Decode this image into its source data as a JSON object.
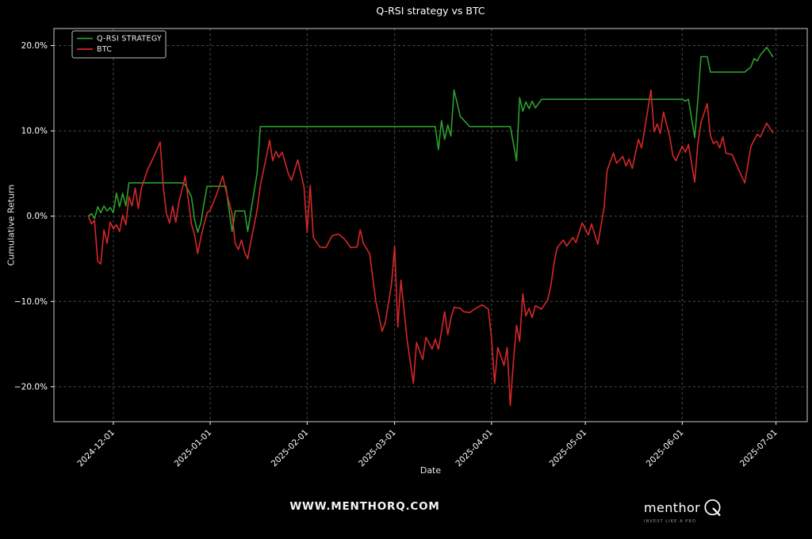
{
  "header": {
    "title": "Q-RSI strategy vs BTC"
  },
  "footer": {
    "watermark": "WWW.MENTHORQ.COM",
    "brand": "menthor",
    "brand_q": "Q",
    "tagline": "INVEST LIKE A PRO"
  },
  "colors": {
    "background": "#000000",
    "text": "#ffffff",
    "grid": "#4d4d4d",
    "spine": "#c8c8c8",
    "strategy": "#2ca02c",
    "btc": "#d62728"
  },
  "chart_data": {
    "type": "line",
    "title": "Q-RSI strategy vs BTC",
    "xlabel": "Date",
    "ylabel": "Cumulative Return",
    "grid": true,
    "legend_position": "upper-left",
    "xlim": [
      "2024-11-12",
      "2025-07-11"
    ],
    "ylim": [
      -24.1,
      22.0
    ],
    "x_ticks": [
      "2024-12-01",
      "2025-01-01",
      "2025-02-01",
      "2025-03-01",
      "2025-04-01",
      "2025-05-01",
      "2025-06-01",
      "2025-07-01"
    ],
    "y_ticks": [
      {
        "value": 20,
        "label": "20.0%"
      },
      {
        "value": 10,
        "label": "10.0%"
      },
      {
        "value": 0,
        "label": "0.0%"
      },
      {
        "value": -10,
        "label": "−10.0%"
      },
      {
        "value": -20,
        "label": "−20.0%"
      }
    ],
    "dates": [
      "2024-11-23",
      "2024-11-24",
      "2024-11-25",
      "2024-11-26",
      "2024-11-27",
      "2024-11-28",
      "2024-11-29",
      "2024-11-30",
      "2024-12-01",
      "2024-12-02",
      "2024-12-03",
      "2024-12-04",
      "2024-12-05",
      "2024-12-06",
      "2024-12-07",
      "2024-12-08",
      "2024-12-09",
      "2024-12-10",
      "2024-12-12",
      "2024-12-14",
      "2024-12-16",
      "2024-12-17",
      "2024-12-18",
      "2024-12-19",
      "2024-12-20",
      "2024-12-21",
      "2024-12-22",
      "2024-12-23",
      "2024-12-24",
      "2024-12-26",
      "2024-12-27",
      "2024-12-28",
      "2024-12-29",
      "2024-12-30",
      "2024-12-31",
      "2025-01-01",
      "2025-01-03",
      "2025-01-05",
      "2025-01-06",
      "2025-01-08",
      "2025-01-09",
      "2025-01-10",
      "2025-01-11",
      "2025-01-12",
      "2025-01-13",
      "2025-01-14",
      "2025-01-16",
      "2025-01-17",
      "2025-01-19",
      "2025-01-20",
      "2025-01-21",
      "2025-01-22",
      "2025-01-23",
      "2025-01-24",
      "2025-01-26",
      "2025-01-27",
      "2025-01-29",
      "2025-01-31",
      "2025-02-01",
      "2025-02-02",
      "2025-02-03",
      "2025-02-05",
      "2025-02-07",
      "2025-02-09",
      "2025-02-11",
      "2025-02-13",
      "2025-02-15",
      "2025-02-17",
      "2025-02-18",
      "2025-02-19",
      "2025-02-21",
      "2025-02-23",
      "2025-02-25",
      "2025-02-26",
      "2025-02-28",
      "2025-03-01",
      "2025-03-02",
      "2025-03-03",
      "2025-03-05",
      "2025-03-07",
      "2025-03-08",
      "2025-03-10",
      "2025-03-11",
      "2025-03-13",
      "2025-03-14",
      "2025-03-15",
      "2025-03-16",
      "2025-03-17",
      "2025-03-18",
      "2025-03-19",
      "2025-03-20",
      "2025-03-22",
      "2025-03-23",
      "2025-03-25",
      "2025-03-27",
      "2025-03-29",
      "2025-03-31",
      "2025-04-01",
      "2025-04-02",
      "2025-04-03",
      "2025-04-05",
      "2025-04-06",
      "2025-04-07",
      "2025-04-08",
      "2025-04-09",
      "2025-04-10",
      "2025-04-11",
      "2025-04-12",
      "2025-04-13",
      "2025-04-14",
      "2025-04-15",
      "2025-04-17",
      "2025-04-19",
      "2025-04-20",
      "2025-04-21",
      "2025-04-22",
      "2025-04-24",
      "2025-04-25",
      "2025-04-27",
      "2025-04-28",
      "2025-04-30",
      "2025-05-02",
      "2025-05-03",
      "2025-05-05",
      "2025-05-07",
      "2025-05-08",
      "2025-05-10",
      "2025-05-11",
      "2025-05-13",
      "2025-05-14",
      "2025-05-15",
      "2025-05-16",
      "2025-05-18",
      "2025-05-19",
      "2025-05-21",
      "2025-05-22",
      "2025-05-23",
      "2025-05-24",
      "2025-05-25",
      "2025-05-26",
      "2025-05-28",
      "2025-05-29",
      "2025-05-30",
      "2025-06-01",
      "2025-06-02",
      "2025-06-03",
      "2025-06-05",
      "2025-06-06",
      "2025-06-07",
      "2025-06-09",
      "2025-06-10",
      "2025-06-11",
      "2025-06-12",
      "2025-06-13",
      "2025-06-14",
      "2025-06-15",
      "2025-06-17",
      "2025-06-19",
      "2025-06-21",
      "2025-06-23",
      "2025-06-24",
      "2025-06-25",
      "2025-06-26",
      "2025-06-28",
      "2025-06-30"
    ],
    "series": [
      {
        "name": "Q-RSI STRATEGY",
        "color": "#2ca02c",
        "values": [
          0.0,
          0.3,
          -0.3,
          1.1,
          0.4,
          1.2,
          0.6,
          1.0,
          0.4,
          2.7,
          1.1,
          2.7,
          1.2,
          3.9,
          3.9,
          3.9,
          3.9,
          3.9,
          3.9,
          3.9,
          3.9,
          3.9,
          3.9,
          3.9,
          3.9,
          3.9,
          3.9,
          3.9,
          3.7,
          2.3,
          -0.4,
          -1.9,
          -0.8,
          1.5,
          3.5,
          3.5,
          3.5,
          3.5,
          3.5,
          -1.8,
          0.6,
          0.6,
          0.6,
          0.6,
          -1.8,
          0.5,
          5.0,
          10.5,
          10.5,
          10.5,
          10.5,
          10.5,
          10.5,
          10.5,
          10.5,
          10.5,
          10.5,
          10.5,
          10.5,
          10.5,
          10.5,
          10.5,
          10.5,
          10.5,
          10.5,
          10.5,
          10.5,
          10.5,
          10.5,
          10.5,
          10.5,
          10.5,
          10.5,
          10.5,
          10.5,
          10.5,
          10.5,
          10.5,
          10.5,
          10.5,
          10.5,
          10.5,
          10.5,
          10.5,
          10.5,
          7.8,
          11.2,
          9.0,
          10.7,
          9.4,
          14.8,
          11.7,
          11.3,
          10.5,
          10.5,
          10.5,
          10.5,
          10.5,
          10.5,
          10.5,
          10.5,
          10.5,
          10.5,
          8.5,
          6.5,
          13.9,
          12.3,
          13.4,
          12.6,
          13.5,
          12.7,
          13.7,
          13.7,
          13.7,
          13.7,
          13.7,
          13.7,
          13.7,
          13.7,
          13.7,
          13.7,
          13.7,
          13.7,
          13.7,
          13.7,
          13.7,
          13.7,
          13.7,
          13.7,
          13.7,
          13.7,
          13.7,
          13.7,
          13.7,
          13.7,
          13.7,
          13.7,
          13.7,
          13.7,
          13.7,
          13.7,
          13.7,
          13.7,
          13.7,
          13.5,
          13.7,
          9.2,
          13.6,
          18.7,
          18.7,
          16.9,
          16.9,
          16.9,
          16.9,
          16.9,
          16.9,
          16.9,
          16.9,
          16.9,
          17.5,
          18.5,
          18.2,
          18.9,
          19.8,
          18.7
        ]
      },
      {
        "name": "BTC",
        "color": "#d62728",
        "values": [
          0.0,
          -0.9,
          -0.5,
          -5.3,
          -5.6,
          -1.6,
          -3.2,
          -0.7,
          -1.5,
          -1.0,
          -1.8,
          0.1,
          -1.0,
          2.3,
          1.2,
          3.3,
          0.9,
          3.3,
          5.5,
          7.0,
          8.7,
          3.4,
          0.3,
          -0.8,
          1.2,
          -0.7,
          1.7,
          3.1,
          4.7,
          -0.9,
          -2.2,
          -4.4,
          -2.5,
          -1.0,
          0.4,
          0.7,
          2.5,
          4.7,
          3.0,
          0.3,
          -3.2,
          -3.9,
          -2.8,
          -4.2,
          -5.0,
          -3.0,
          0.7,
          3.5,
          7.0,
          8.9,
          6.5,
          7.6,
          6.9,
          7.5,
          5.0,
          4.2,
          6.6,
          3.4,
          -1.9,
          3.6,
          -2.5,
          -3.6,
          -3.7,
          -2.3,
          -2.1,
          -2.7,
          -3.7,
          -3.6,
          -1.6,
          -3.2,
          -4.4,
          -10.0,
          -13.5,
          -12.5,
          -8.0,
          -3.5,
          -13.0,
          -7.5,
          -14.5,
          -19.6,
          -14.8,
          -16.8,
          -14.2,
          -15.6,
          -14.4,
          -15.6,
          -13.5,
          -11.2,
          -13.9,
          -12.0,
          -10.7,
          -10.8,
          -11.2,
          -11.3,
          -10.8,
          -10.4,
          -10.9,
          -14.4,
          -19.6,
          -15.4,
          -17.5,
          -15.4,
          -22.2,
          -17.0,
          -12.8,
          -14.7,
          -9.1,
          -11.7,
          -10.8,
          -11.9,
          -10.5,
          -10.9,
          -9.8,
          -8.1,
          -5.5,
          -3.7,
          -2.8,
          -3.5,
          -2.5,
          -3.1,
          -0.8,
          -2.2,
          -0.9,
          -3.3,
          1.0,
          5.4,
          7.4,
          6.2,
          7.0,
          5.9,
          6.7,
          5.6,
          9.0,
          8.0,
          12.5,
          14.8,
          9.9,
          10.8,
          9.7,
          12.2,
          9.3,
          7.1,
          6.5,
          8.2,
          7.5,
          8.4,
          4.0,
          8.5,
          11.0,
          13.2,
          9.5,
          8.5,
          8.8,
          8.0,
          9.3,
          7.4,
          7.2,
          5.5,
          3.9,
          8.2,
          8.9,
          9.6,
          9.3,
          10.9,
          9.8
        ]
      }
    ]
  }
}
